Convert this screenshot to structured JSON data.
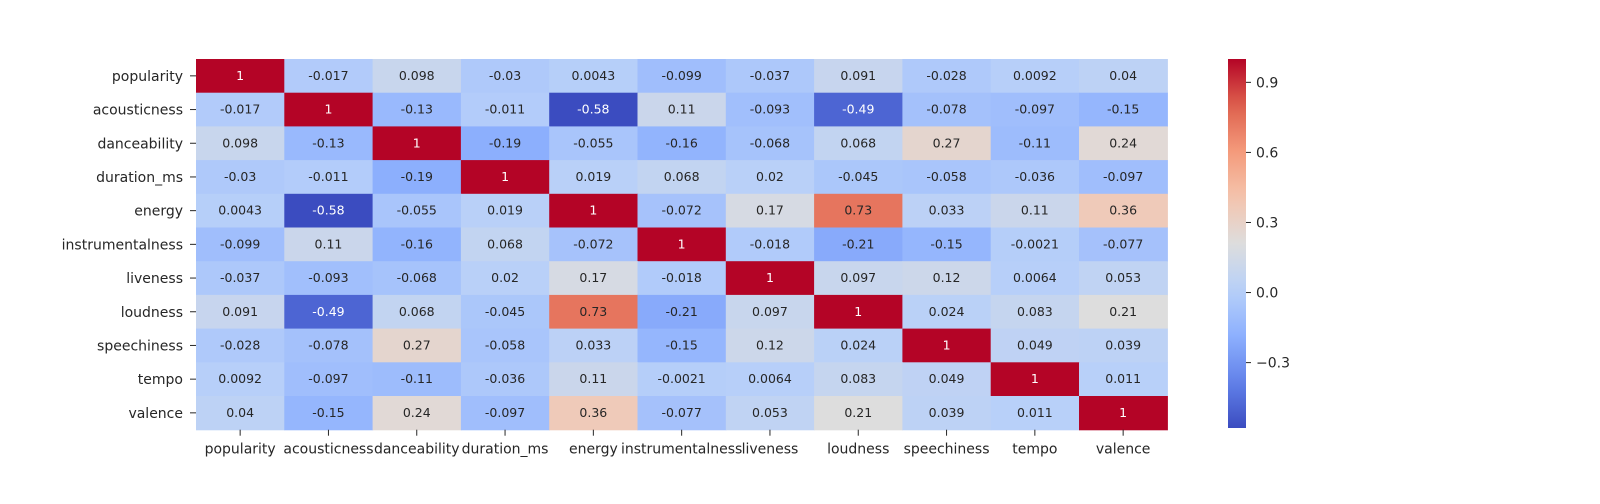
{
  "chart_data": {
    "type": "heatmap",
    "title": "",
    "xlabel": "",
    "ylabel": "",
    "rows": [
      "popularity",
      "acousticness",
      "danceability",
      "duration_ms",
      "energy",
      "instrumentalness",
      "liveness",
      "loudness",
      "speechiness",
      "tempo",
      "valence"
    ],
    "columns": [
      "popularity",
      "acousticness",
      "danceability",
      "duration_ms",
      "energy",
      "instrumentalness",
      "liveness",
      "loudness",
      "speechiness",
      "tempo",
      "valence"
    ],
    "values": [
      [
        1,
        -0.017,
        0.098,
        -0.03,
        0.0043,
        -0.099,
        -0.037,
        0.091,
        -0.028,
        0.0092,
        0.04
      ],
      [
        -0.017,
        1,
        -0.13,
        -0.011,
        -0.58,
        0.11,
        -0.093,
        -0.49,
        -0.078,
        -0.097,
        -0.15
      ],
      [
        0.098,
        -0.13,
        1,
        -0.19,
        -0.055,
        -0.16,
        -0.068,
        0.068,
        0.27,
        -0.11,
        0.24
      ],
      [
        -0.03,
        -0.011,
        -0.19,
        1,
        0.019,
        0.068,
        0.02,
        -0.045,
        -0.058,
        -0.036,
        -0.097
      ],
      [
        0.0043,
        -0.58,
        -0.055,
        0.019,
        1,
        -0.072,
        0.17,
        0.73,
        0.033,
        0.11,
        0.36
      ],
      [
        -0.099,
        0.11,
        -0.16,
        0.068,
        -0.072,
        1,
        -0.018,
        -0.21,
        -0.15,
        -0.0021,
        -0.077
      ],
      [
        -0.037,
        -0.093,
        -0.068,
        0.02,
        0.17,
        -0.018,
        1,
        0.097,
        0.12,
        0.0064,
        0.053
      ],
      [
        0.091,
        -0.49,
        0.068,
        -0.045,
        0.73,
        -0.21,
        0.097,
        1,
        0.024,
        0.083,
        0.21
      ],
      [
        -0.028,
        -0.078,
        0.27,
        -0.058,
        0.033,
        -0.15,
        0.12,
        0.024,
        1,
        0.049,
        0.039
      ],
      [
        0.0092,
        -0.097,
        -0.11,
        -0.036,
        0.11,
        -0.0021,
        0.0064,
        0.083,
        0.049,
        1,
        0.011
      ],
      [
        0.04,
        -0.15,
        0.24,
        -0.097,
        0.36,
        -0.077,
        0.053,
        0.21,
        0.039,
        0.011,
        1
      ]
    ],
    "cell_labels": [
      [
        "1",
        "-0.017",
        "0.098",
        "-0.03",
        "0.0043",
        "-0.099",
        "-0.037",
        "0.091",
        "-0.028",
        "0.0092",
        "0.04"
      ],
      [
        "-0.017",
        "1",
        "-0.13",
        "-0.011",
        "-0.58",
        "0.11",
        "-0.093",
        "-0.49",
        "-0.078",
        "-0.097",
        "-0.15"
      ],
      [
        "0.098",
        "-0.13",
        "1",
        "-0.19",
        "-0.055",
        "-0.16",
        "-0.068",
        "0.068",
        "0.27",
        "-0.11",
        "0.24"
      ],
      [
        "-0.03",
        "-0.011",
        "-0.19",
        "1",
        "0.019",
        "0.068",
        "0.02",
        "-0.045",
        "-0.058",
        "-0.036",
        "-0.097"
      ],
      [
        "0.0043",
        "-0.58",
        "-0.055",
        "0.019",
        "1",
        "-0.072",
        "0.17",
        "0.73",
        "0.033",
        "0.11",
        "0.36"
      ],
      [
        "-0.099",
        "0.11",
        "-0.16",
        "0.068",
        "-0.072",
        "1",
        "-0.018",
        "-0.21",
        "-0.15",
        "-0.0021",
        "-0.077"
      ],
      [
        "-0.037",
        "-0.093",
        "-0.068",
        "0.02",
        "0.17",
        "-0.018",
        "1",
        "0.097",
        "0.12",
        "0.0064",
        "0.053"
      ],
      [
        "0.091",
        "-0.49",
        "0.068",
        "-0.045",
        "0.73",
        "-0.21",
        "0.097",
        "1",
        "0.024",
        "0.083",
        "0.21"
      ],
      [
        "-0.028",
        "-0.078",
        "0.27",
        "-0.058",
        "0.033",
        "-0.15",
        "0.12",
        "0.024",
        "1",
        "0.049",
        "0.039"
      ],
      [
        "0.0092",
        "-0.097",
        "-0.11",
        "-0.036",
        "0.11",
        "-0.0021",
        "0.0064",
        "0.083",
        "0.049",
        "1",
        "0.011"
      ],
      [
        "0.04",
        "-0.15",
        "0.24",
        "-0.097",
        "0.36",
        "-0.077",
        "0.053",
        "0.21",
        "0.039",
        "0.011",
        "1"
      ]
    ],
    "colormap": "coolwarm",
    "vmin": -0.58,
    "vmax": 1,
    "colorbar": {
      "ticks": [
        0.9,
        0.6,
        0.3,
        0.0,
        -0.3
      ],
      "tick_labels": [
        "0.9",
        "0.6",
        "0.3",
        "0.0",
        "−0.3"
      ],
      "position": "right"
    },
    "grid": false,
    "legend": "none"
  }
}
